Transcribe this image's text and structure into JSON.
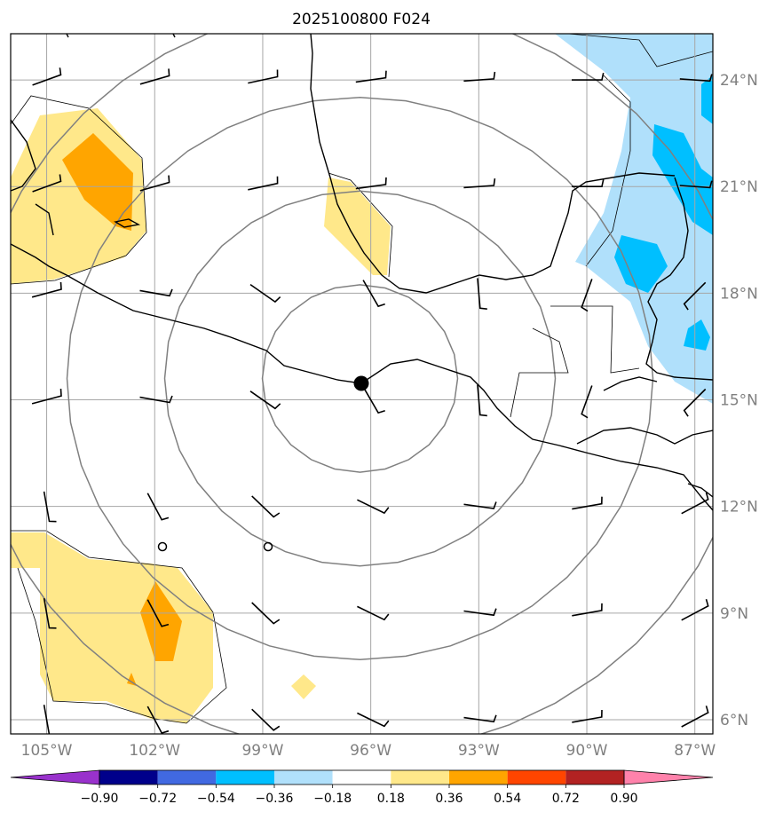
{
  "title": "2025100800 F024",
  "map": {
    "lon_range": [
      -106.0,
      -86.5
    ],
    "lat_range": [
      5.6,
      25.3
    ],
    "lat_ticks": [
      {
        "value": 6,
        "label": "6°N"
      },
      {
        "value": 9,
        "label": "9°N"
      },
      {
        "value": 12,
        "label": "12°N"
      },
      {
        "value": 15,
        "label": "15°N"
      },
      {
        "value": 18,
        "label": "18°N"
      },
      {
        "value": 21,
        "label": "21°N"
      },
      {
        "value": 24,
        "label": "24°N"
      }
    ],
    "lon_ticks": [
      {
        "value": -105,
        "label": "105°W"
      },
      {
        "value": -102,
        "label": "102°W"
      },
      {
        "value": -99,
        "label": "99°W"
      },
      {
        "value": -96,
        "label": "96°W"
      },
      {
        "value": -93,
        "label": "93°W"
      },
      {
        "value": -90,
        "label": "90°W"
      },
      {
        "value": -87,
        "label": "87°W"
      }
    ],
    "center": {
      "lon": -96.3,
      "lat": 15.6
    },
    "range_rings_count": 4,
    "wind_barb_rows": [
      24,
      21,
      18,
      15,
      12,
      9,
      6
    ],
    "wind_barb_cols": [
      -105,
      -102,
      -99,
      -96,
      -93,
      -90,
      -87
    ]
  },
  "colorbar": {
    "levels": [
      "−0.90",
      "−0.72",
      "−0.54",
      "−0.36",
      "−0.18",
      "0.18",
      "0.36",
      "0.54",
      "0.72",
      "0.90"
    ],
    "colors": [
      "#9932cc",
      "#00008b",
      "#4169e1",
      "#00bfff",
      "#b0e0fb",
      "#ffffff",
      "#ffe88a",
      "#ffa500",
      "#ff4500",
      "#b22222",
      "#ff82ab"
    ]
  }
}
